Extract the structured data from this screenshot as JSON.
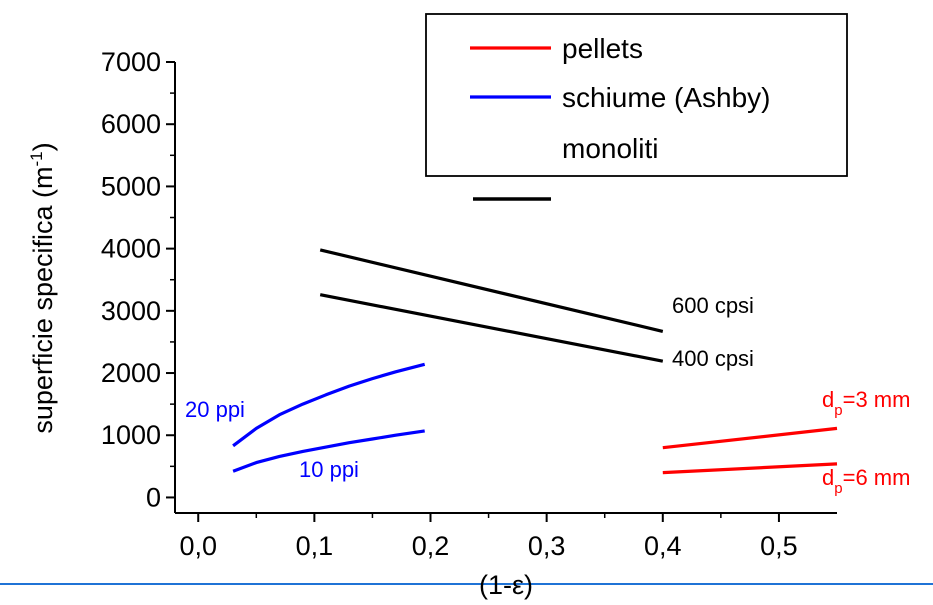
{
  "chart_data": {
    "type": "line",
    "xlabel": "(1-ε)",
    "ylabel": "superficie specifica",
    "ylabel_unit_base": "m",
    "ylabel_unit_exp": "-1",
    "xlim": [
      -0.02,
      0.55
    ],
    "ylim": [
      -250,
      7000
    ],
    "x_ticks": [
      0.0,
      0.1,
      0.2,
      0.3,
      0.4,
      0.5
    ],
    "x_tick_labels": [
      "0,0",
      "0,1",
      "0,2",
      "0,3",
      "0,4",
      "0,5"
    ],
    "y_ticks": [
      0,
      1000,
      2000,
      3000,
      4000,
      5000,
      6000,
      7000
    ],
    "y_tick_labels": [
      "0",
      "1000",
      "2000",
      "3000",
      "4000",
      "5000",
      "6000",
      "7000"
    ],
    "grid": false,
    "legend": {
      "placement": "top-right",
      "entries": [
        {
          "label": "pellets",
          "color": "#ff0000"
        },
        {
          "label": "schiume (Ashby)",
          "color": "#0000ff"
        },
        {
          "label": "monoliti",
          "color": "#000000"
        }
      ]
    },
    "series": [
      {
        "group": "monoliti",
        "color": "#000000",
        "label": "600 cpsi",
        "x": [
          0.105,
          0.4
        ],
        "y": [
          3980,
          2670
        ]
      },
      {
        "group": "monoliti",
        "color": "#000000",
        "label": "400 cpsi",
        "x": [
          0.105,
          0.4
        ],
        "y": [
          3260,
          2190
        ]
      },
      {
        "group": "schiume (Ashby)",
        "color": "#0000ff",
        "label": "20 ppi",
        "x": [
          0.03,
          0.05,
          0.07,
          0.09,
          0.11,
          0.13,
          0.15,
          0.17,
          0.195
        ],
        "y": [
          830,
          1110,
          1330,
          1500,
          1650,
          1790,
          1910,
          2020,
          2140
        ]
      },
      {
        "group": "schiume (Ashby)",
        "color": "#0000ff",
        "label": "10 ppi",
        "x": [
          0.03,
          0.05,
          0.07,
          0.09,
          0.11,
          0.13,
          0.15,
          0.17,
          0.195
        ],
        "y": [
          420,
          560,
          660,
          740,
          810,
          880,
          940,
          1000,
          1070
        ]
      },
      {
        "group": "pellets",
        "color": "#ff0000",
        "label_main": "d",
        "label_sub": "p",
        "label_rest": "=3 mm",
        "x": [
          0.4,
          0.55
        ],
        "y": [
          800,
          1110
        ]
      },
      {
        "group": "pellets",
        "color": "#ff0000",
        "label_main": "d",
        "label_sub": "p",
        "label_rest": "=6 mm",
        "x": [
          0.4,
          0.55
        ],
        "y": [
          400,
          540
        ]
      }
    ]
  }
}
